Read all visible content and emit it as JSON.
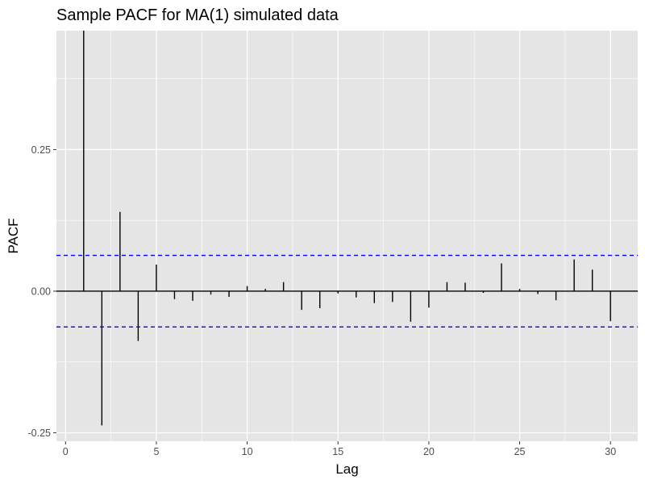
{
  "chart_data": {
    "type": "bar",
    "title": "Sample PACF for MA(1) simulated data",
    "xlabel": "Lag",
    "ylabel": "PACF",
    "xlim": [
      -0.5,
      31.5
    ],
    "ylim": [
      -0.265,
      0.46
    ],
    "x_ticks": [
      0,
      5,
      10,
      15,
      20,
      25,
      30
    ],
    "x_tick_labels": [
      "0",
      "5",
      "10",
      "15",
      "20",
      "25",
      "30"
    ],
    "y_ticks": [
      -0.25,
      0,
      0.25
    ],
    "y_tick_labels": [
      "-0.25",
      "0.00",
      "0.25"
    ],
    "grid": true,
    "legend": "none",
    "lags": [
      1,
      2,
      3,
      4,
      5,
      6,
      7,
      8,
      9,
      10,
      11,
      12,
      13,
      14,
      15,
      16,
      17,
      18,
      19,
      20,
      21,
      22,
      23,
      24,
      25,
      26,
      27,
      28,
      29,
      30
    ],
    "values": [
      0.46,
      -0.237,
      0.14,
      -0.088,
      0.047,
      -0.014,
      -0.017,
      -0.006,
      -0.01,
      0.009,
      0.004,
      0.016,
      -0.033,
      -0.03,
      -0.004,
      -0.011,
      -0.021,
      -0.019,
      -0.054,
      -0.029,
      0.016,
      0.015,
      -0.003,
      0.049,
      0.004,
      -0.005,
      -0.016,
      0.056,
      0.038,
      -0.053
    ],
    "confidence_bound": 0.0632,
    "colors": {
      "panel": "#e5e5e5",
      "grid": "#ffffff",
      "bars": "#000000",
      "confidence": "#0000ff"
    }
  }
}
